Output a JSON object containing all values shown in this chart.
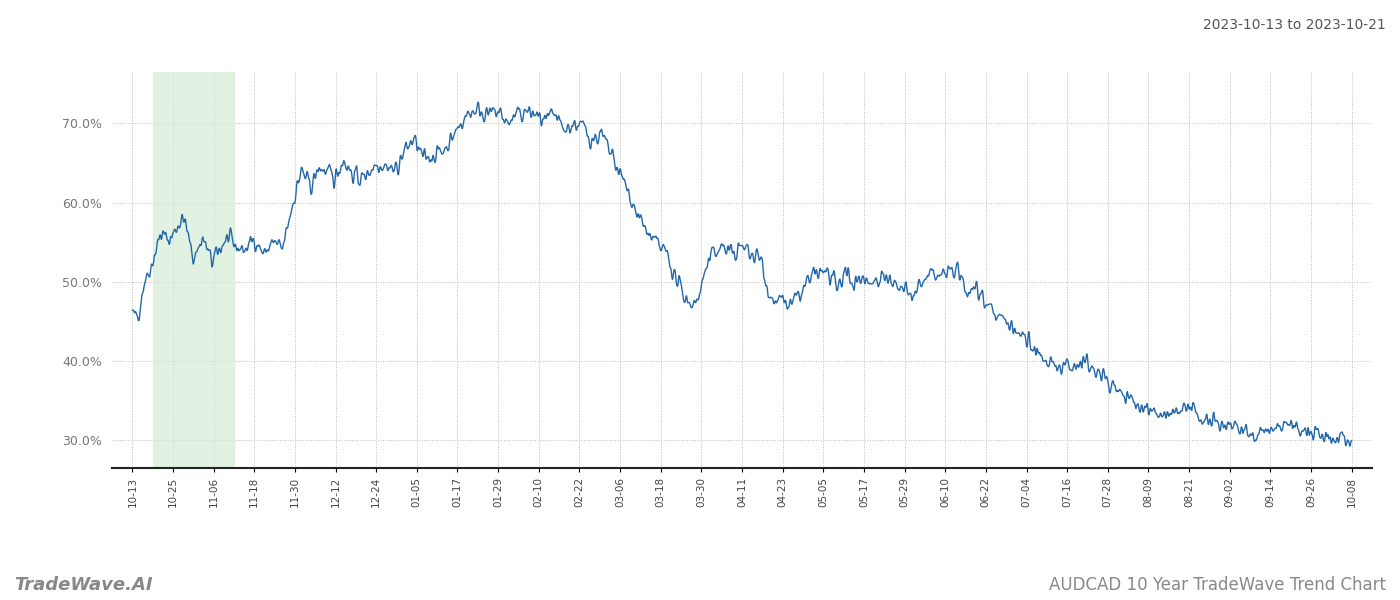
{
  "title": "AUDCAD 10 Year TradeWave Trend Chart",
  "subtitle": "2023-10-13 to 2023-10-21",
  "watermark": "TradeWave.AI",
  "line_color": "#2468a8",
  "line_width": 1.0,
  "background_color": "#ffffff",
  "grid_color": "#bbbbbb",
  "highlight_color": "#d6edd6",
  "highlight_alpha": 0.7,
  "ylim": [
    0.265,
    0.765
  ],
  "yticks": [
    0.3,
    0.4,
    0.5,
    0.6,
    0.7
  ],
  "xtick_labels": [
    "10-13",
    "10-25",
    "11-06",
    "11-18",
    "11-30",
    "12-12",
    "12-24",
    "01-05",
    "01-17",
    "01-29",
    "02-10",
    "02-22",
    "03-06",
    "03-18",
    "03-30",
    "04-11",
    "04-23",
    "05-05",
    "05-17",
    "05-29",
    "06-10",
    "06-22",
    "07-04",
    "07-16",
    "07-28",
    "08-09",
    "08-21",
    "09-02",
    "09-14",
    "09-26",
    "10-08"
  ],
  "highlight_xstart": 0.5,
  "highlight_xend": 2.5,
  "n_points": 2600
}
